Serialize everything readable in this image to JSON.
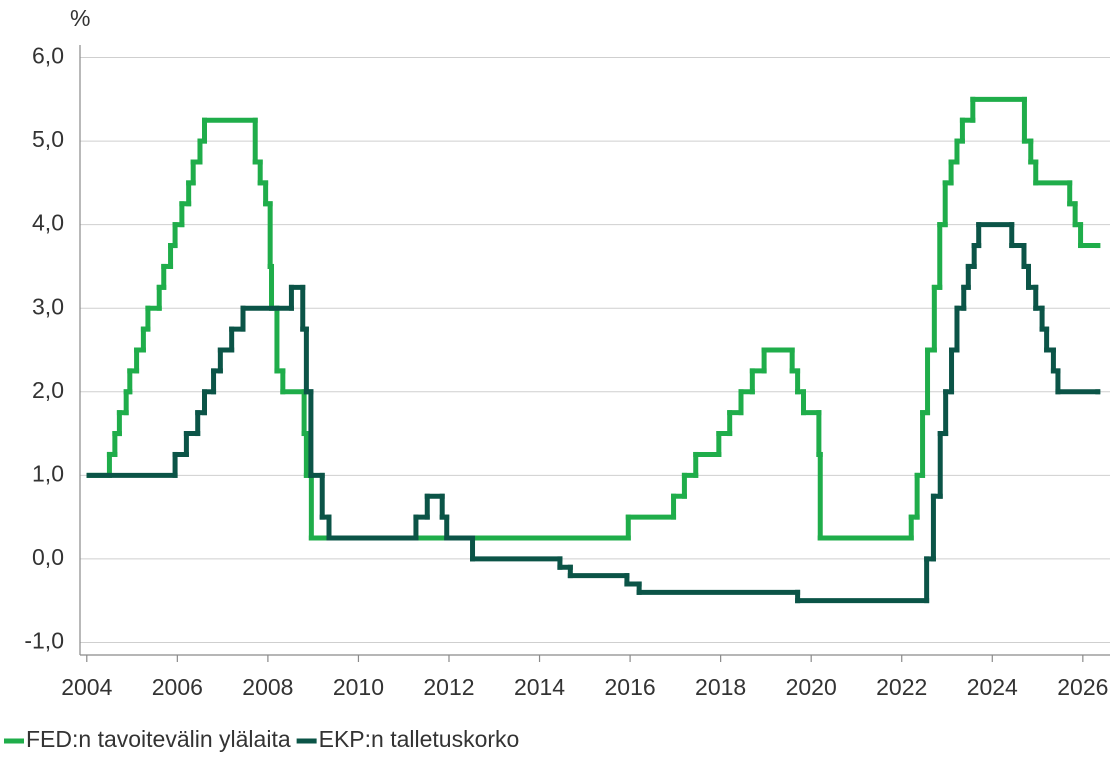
{
  "chart_data": {
    "type": "line",
    "drawstyle": "steps-post",
    "y_label": "%",
    "xlim": [
      2003.85,
      2026.6
    ],
    "xticks": [
      2004,
      2006,
      2008,
      2010,
      2012,
      2014,
      2016,
      2018,
      2020,
      2022,
      2024,
      2026
    ],
    "ylim": [
      -1.15,
      6.15
    ],
    "yticks": [
      {
        "value": -1,
        "label": "-1,0"
      },
      {
        "value": 0,
        "label": "0,0"
      },
      {
        "value": 1,
        "label": "1,0"
      },
      {
        "value": 2,
        "label": "2,0"
      },
      {
        "value": 3,
        "label": "3,0"
      },
      {
        "value": 4,
        "label": "4,0"
      },
      {
        "value": 5,
        "label": "5,0"
      },
      {
        "value": 6,
        "label": "6,0"
      }
    ],
    "grid": true,
    "legend": "bottom-left",
    "series": [
      {
        "name": "FED:n tavoitevälin ylälaita",
        "color": "#1fad4a",
        "x": [
          2004.05,
          2004.5,
          2004.62,
          2004.72,
          2004.87,
          2004.95,
          2005.1,
          2005.25,
          2005.35,
          2005.6,
          2005.7,
          2005.85,
          2005.95,
          2006.1,
          2006.25,
          2006.35,
          2006.5,
          2006.6,
          2007.72,
          2007.83,
          2007.95,
          2008.05,
          2008.08,
          2008.2,
          2008.33,
          2008.8,
          2008.85,
          2008.96,
          2015.96,
          2016.96,
          2017.2,
          2017.45,
          2017.96,
          2018.2,
          2018.45,
          2018.7,
          2018.96,
          2019.58,
          2019.7,
          2019.83,
          2020.17,
          2020.2,
          2022.21,
          2022.34,
          2022.46,
          2022.57,
          2022.72,
          2022.84,
          2022.96,
          2023.09,
          2023.22,
          2023.34,
          2023.57,
          2024.71,
          2024.85,
          2024.96,
          2025.71,
          2025.83,
          2025.95,
          2026.33
        ],
        "values": [
          1.0,
          1.25,
          1.5,
          1.75,
          2.0,
          2.25,
          2.5,
          2.75,
          3.0,
          3.25,
          3.5,
          3.75,
          4.0,
          4.25,
          4.5,
          4.75,
          5.0,
          5.25,
          4.75,
          4.5,
          4.25,
          3.5,
          3.0,
          2.25,
          2.0,
          1.5,
          1.0,
          0.25,
          0.5,
          0.75,
          1.0,
          1.25,
          1.5,
          1.75,
          2.0,
          2.25,
          2.5,
          2.25,
          2.0,
          1.75,
          1.25,
          0.25,
          0.5,
          1.0,
          1.75,
          2.5,
          3.25,
          4.0,
          4.5,
          4.75,
          5.0,
          5.25,
          5.5,
          5.0,
          4.75,
          4.5,
          4.25,
          4.0,
          3.75,
          3.75
        ]
      },
      {
        "name": "EKP:n talletuskorko",
        "color": "#0b5447",
        "x": [
          2004.05,
          2005.95,
          2006.2,
          2006.45,
          2006.6,
          2006.8,
          2006.95,
          2007.2,
          2007.45,
          2008.52,
          2008.77,
          2008.85,
          2008.95,
          2009.2,
          2009.35,
          2011.27,
          2011.52,
          2011.85,
          2011.95,
          2012.52,
          2014.45,
          2014.68,
          2015.93,
          2016.2,
          2019.7,
          2022.55,
          2022.7,
          2022.85,
          2022.97,
          2023.1,
          2023.22,
          2023.37,
          2023.47,
          2023.6,
          2023.7,
          2024.43,
          2024.7,
          2024.8,
          2024.96,
          2025.1,
          2025.2,
          2025.35,
          2025.45,
          2026.33
        ],
        "values": [
          1.0,
          1.25,
          1.5,
          1.75,
          2.0,
          2.25,
          2.5,
          2.75,
          3.0,
          3.25,
          2.75,
          2.0,
          1.0,
          0.5,
          0.25,
          0.5,
          0.75,
          0.5,
          0.25,
          0.0,
          -0.1,
          -0.2,
          -0.3,
          -0.4,
          -0.5,
          0.0,
          0.75,
          1.5,
          2.0,
          2.5,
          3.0,
          3.25,
          3.5,
          3.75,
          4.0,
          3.75,
          3.5,
          3.25,
          3.0,
          2.75,
          2.5,
          2.25,
          2.0,
          2.0
        ]
      }
    ]
  }
}
